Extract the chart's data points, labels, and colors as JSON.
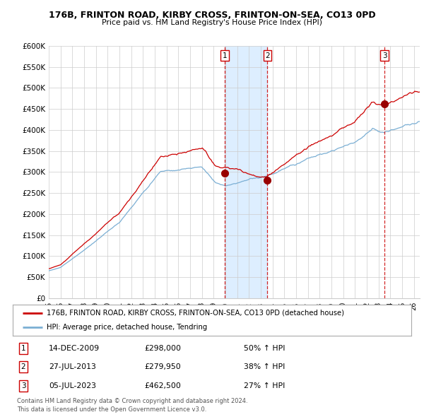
{
  "title": "176B, FRINTON ROAD, KIRBY CROSS, FRINTON-ON-SEA, CO13 0PD",
  "subtitle": "Price paid vs. HM Land Registry's House Price Index (HPI)",
  "ylim": [
    0,
    600000
  ],
  "yticks": [
    0,
    50000,
    100000,
    150000,
    200000,
    250000,
    300000,
    350000,
    400000,
    450000,
    500000,
    550000,
    600000
  ],
  "ytick_labels": [
    "£0",
    "£50K",
    "£100K",
    "£150K",
    "£200K",
    "£250K",
    "£300K",
    "£350K",
    "£400K",
    "£450K",
    "£500K",
    "£550K",
    "£600K"
  ],
  "sale_color": "#cc0000",
  "hpi_color": "#7bafd4",
  "shade_color": "#ddeeff",
  "sale_label": "176B, FRINTON ROAD, KIRBY CROSS, FRINTON-ON-SEA, CO13 0PD (detached house)",
  "hpi_label": "HPI: Average price, detached house, Tendring",
  "transactions": [
    {
      "num": 1,
      "date": "14-DEC-2009",
      "price": 298000,
      "pct": "50%",
      "dir": "↑"
    },
    {
      "num": 2,
      "date": "27-JUL-2013",
      "price": 279950,
      "pct": "38%",
      "dir": "↑"
    },
    {
      "num": 3,
      "date": "05-JUL-2023",
      "price": 462500,
      "pct": "27%",
      "dir": "↑"
    }
  ],
  "transaction_years": [
    2009.95,
    2013.57,
    2023.51
  ],
  "transaction_prices": [
    298000,
    279950,
    462500
  ],
  "footer1": "Contains HM Land Registry data © Crown copyright and database right 2024.",
  "footer2": "This data is licensed under the Open Government Licence v3.0.",
  "bg_color": "#ffffff",
  "grid_color": "#cccccc",
  "vline_color": "#cc0000",
  "xlim_start": 1995.0,
  "xlim_end": 2026.5
}
